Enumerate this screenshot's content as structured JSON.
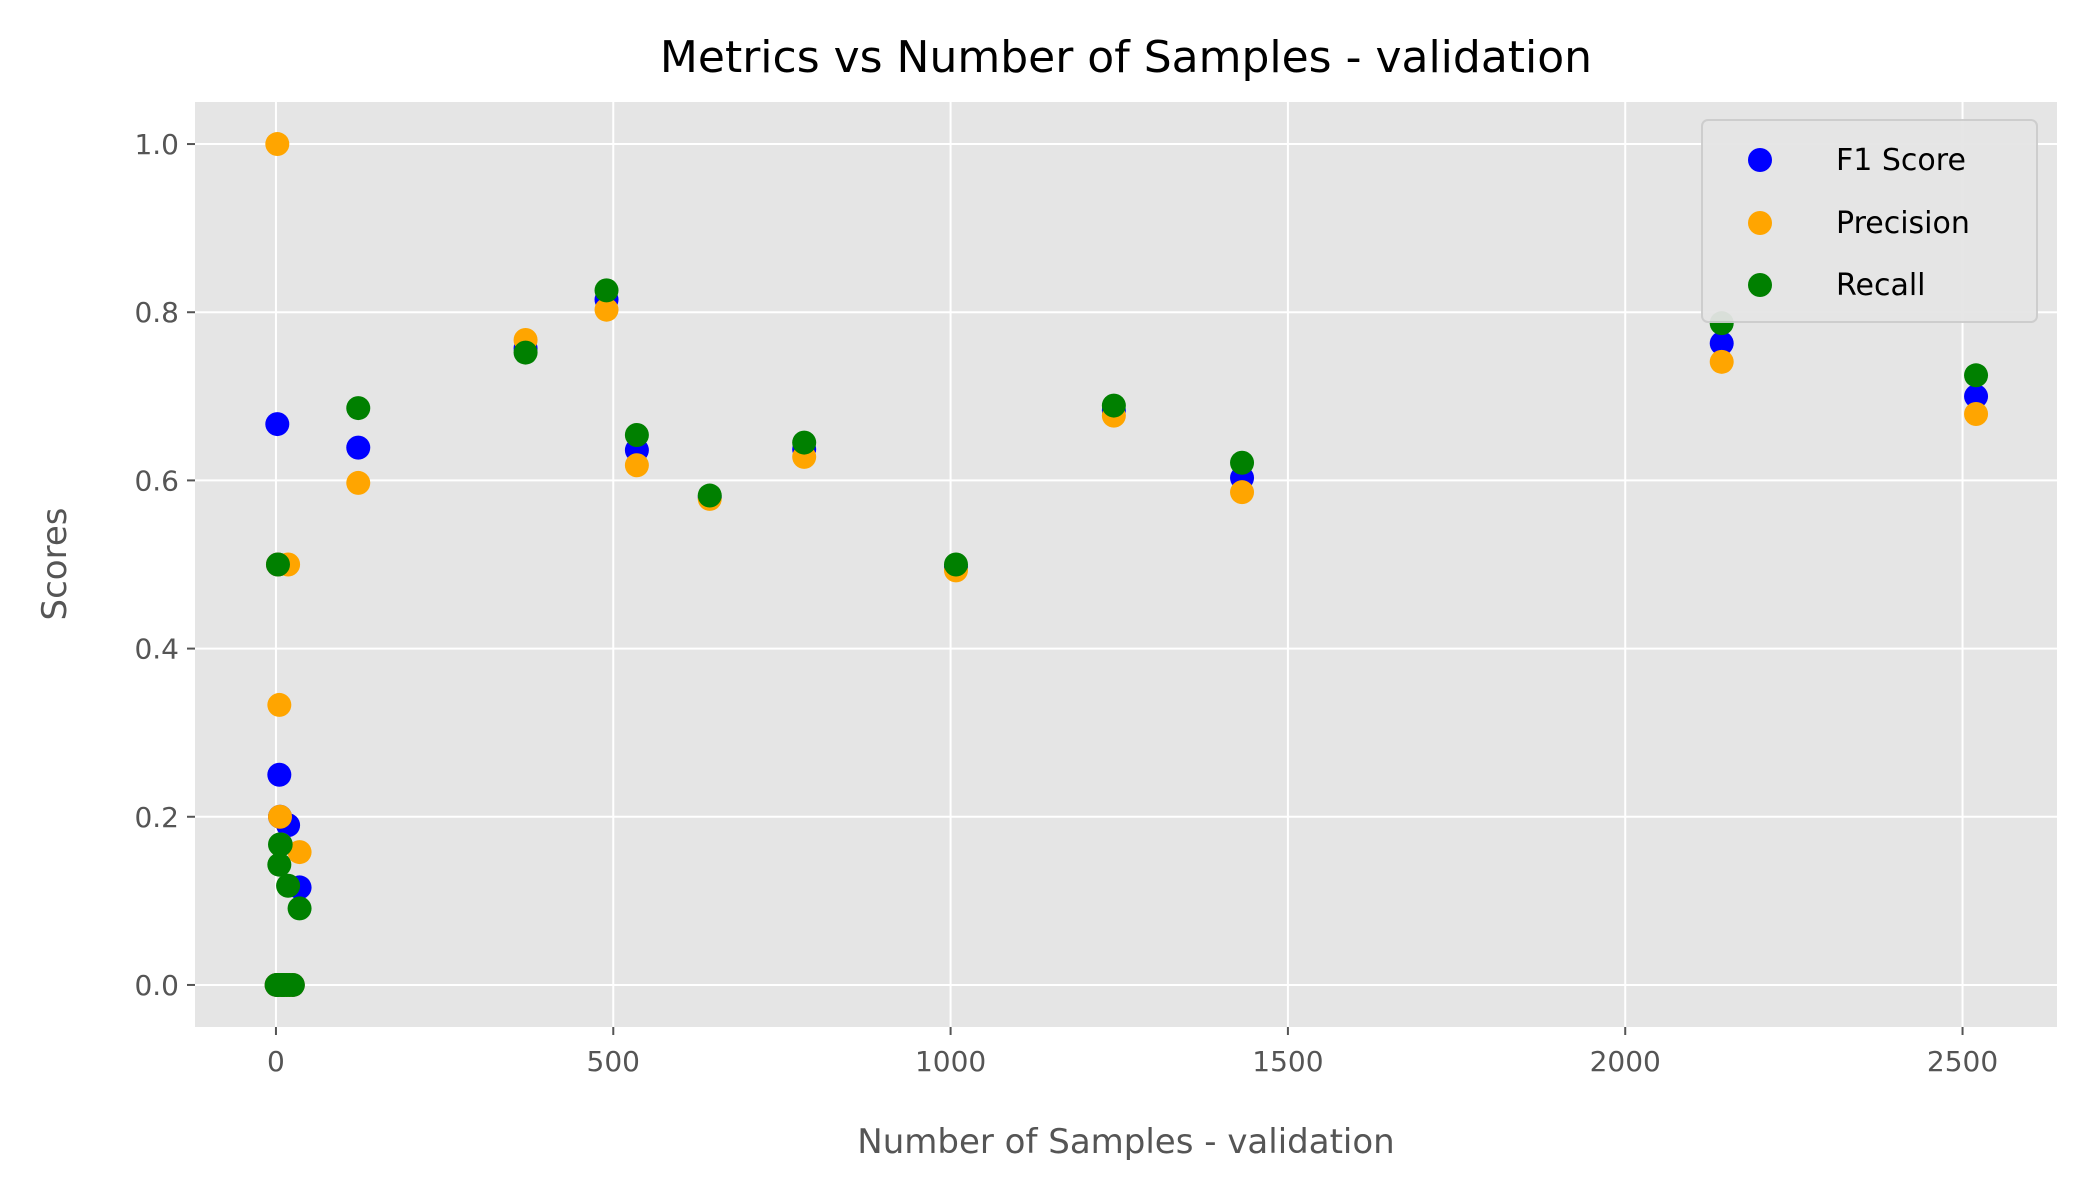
{
  "chart_data": {
    "type": "scatter",
    "title": "Metrics vs Number of Samples - validation",
    "xlabel": "Number of Samples - validation",
    "ylabel": "Scores",
    "xlim": [
      -120,
      2640
    ],
    "ylim": [
      -0.05,
      1.05
    ],
    "xticks": [
      0,
      500,
      1000,
      1500,
      2000,
      2500
    ],
    "yticks": [
      0.0,
      0.2,
      0.4,
      0.6,
      0.8,
      1.0
    ],
    "xtick_labels": [
      "0",
      "500",
      "1000",
      "1500",
      "2000",
      "2500"
    ],
    "ytick_labels": [
      "0.0",
      "0.2",
      "0.4",
      "0.6",
      "0.8",
      "1.0"
    ],
    "grid": true,
    "legend_position": "top-right",
    "series": [
      {
        "name": "F1 Score",
        "color": "#0000ff",
        "points": [
          [
            1,
            0.0
          ],
          [
            2,
            0.667
          ],
          [
            3,
            0.5
          ],
          [
            4,
            0.0
          ],
          [
            5,
            0.25
          ],
          [
            6,
            0.2
          ],
          [
            7,
            0.167
          ],
          [
            8,
            0.0
          ],
          [
            10,
            0.0
          ],
          [
            12,
            0.0
          ],
          [
            16,
            0.0
          ],
          [
            18,
            0.19
          ],
          [
            20,
            0.0
          ],
          [
            25,
            0.0
          ],
          [
            35,
            0.116
          ],
          [
            122,
            0.639
          ],
          [
            370,
            0.757
          ],
          [
            490,
            0.815
          ],
          [
            535,
            0.636
          ],
          [
            643,
            0.58
          ],
          [
            783,
            0.637
          ],
          [
            1008,
            0.497
          ],
          [
            1242,
            0.683
          ],
          [
            1432,
            0.603
          ],
          [
            2143,
            0.763
          ],
          [
            2520,
            0.7
          ]
        ]
      },
      {
        "name": "Precision",
        "color": "#ffa500",
        "points": [
          [
            1,
            0.0
          ],
          [
            2,
            1.0
          ],
          [
            3,
            0.5
          ],
          [
            4,
            0.0
          ],
          [
            5,
            0.333
          ],
          [
            6,
            0.2
          ],
          [
            7,
            0.167
          ],
          [
            8,
            0.0
          ],
          [
            10,
            0.0
          ],
          [
            12,
            0.0
          ],
          [
            16,
            0.0
          ],
          [
            18,
            0.5
          ],
          [
            20,
            0.0
          ],
          [
            25,
            0.0
          ],
          [
            35,
            0.158
          ],
          [
            122,
            0.597
          ],
          [
            370,
            0.767
          ],
          [
            490,
            0.803
          ],
          [
            535,
            0.618
          ],
          [
            643,
            0.578
          ],
          [
            783,
            0.628
          ],
          [
            1008,
            0.493
          ],
          [
            1242,
            0.677
          ],
          [
            1432,
            0.586
          ],
          [
            2143,
            0.741
          ],
          [
            2520,
            0.679
          ]
        ]
      },
      {
        "name": "Recall",
        "color": "#008000",
        "points": [
          [
            1,
            0.0
          ],
          [
            2,
            0.0
          ],
          [
            3,
            0.5
          ],
          [
            4,
            0.0
          ],
          [
            5,
            0.143
          ],
          [
            6,
            0.167
          ],
          [
            7,
            0.167
          ],
          [
            8,
            0.0
          ],
          [
            10,
            0.0
          ],
          [
            12,
            0.0
          ],
          [
            16,
            0.0
          ],
          [
            18,
            0.118
          ],
          [
            20,
            0.0
          ],
          [
            25,
            0.0
          ],
          [
            35,
            0.091
          ],
          [
            122,
            0.686
          ],
          [
            370,
            0.752
          ],
          [
            490,
            0.826
          ],
          [
            535,
            0.654
          ],
          [
            643,
            0.582
          ],
          [
            783,
            0.645
          ],
          [
            1008,
            0.5
          ],
          [
            1242,
            0.689
          ],
          [
            1432,
            0.621
          ],
          [
            2143,
            0.787
          ],
          [
            2520,
            0.725
          ]
        ]
      }
    ]
  }
}
